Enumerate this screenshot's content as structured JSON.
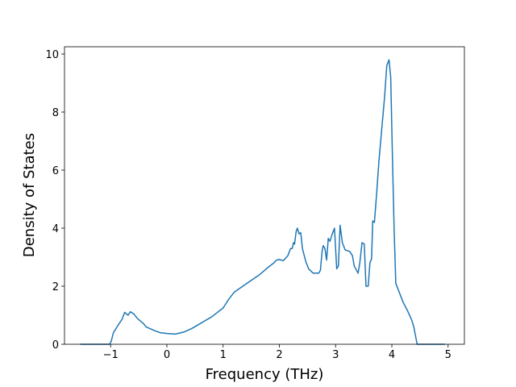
{
  "chart_data": {
    "type": "line",
    "x_label": "Frequency (THz)",
    "y_label": "Density of States",
    "xlim": [
      -1.82,
      5.29
    ],
    "ylim": [
      0,
      10.25
    ],
    "xticks": [
      {
        "value": -1,
        "label": "−1"
      },
      0,
      1,
      2,
      3,
      4,
      5
    ],
    "yticks": [
      0,
      2,
      4,
      6,
      8,
      10
    ],
    "grid": false,
    "series": [
      {
        "color": "#1f77b4",
        "x": [
          -1.54,
          -1.02,
          -0.99,
          -0.95,
          -0.87,
          -0.8,
          -0.75,
          -0.69,
          -0.65,
          -0.59,
          -0.52,
          -0.42,
          -0.37,
          -0.22,
          -0.12,
          0,
          0.15,
          0.3,
          0.45,
          0.6,
          0.8,
          1.0,
          1.05,
          1.1,
          1.2,
          1.35,
          1.5,
          1.65,
          1.8,
          1.9,
          1.95,
          2.0,
          2.07,
          2.15,
          2.2,
          2.23,
          2.25,
          2.27,
          2.3,
          2.32,
          2.35,
          2.38,
          2.41,
          2.47,
          2.52,
          2.6,
          2.7,
          2.73,
          2.76,
          2.78,
          2.81,
          2.84,
          2.87,
          2.9,
          2.94,
          2.98,
          3.02,
          3.05,
          3.08,
          3.12,
          3.17,
          3.25,
          3.3,
          3.33,
          3.4,
          3.43,
          3.47,
          3.51,
          3.54,
          3.58,
          3.61,
          3.64,
          3.66,
          3.69,
          3.73,
          3.77,
          3.82,
          3.87,
          3.91,
          3.95,
          3.98,
          4.01,
          4.04,
          4.07,
          4.13,
          4.2,
          4.28,
          4.35,
          4.39,
          4.44,
          4.45,
          4.95
        ],
        "values": [
          0,
          0,
          0.1,
          0.4,
          0.65,
          0.85,
          1.1,
          1.0,
          1.12,
          1.05,
          0.88,
          0.72,
          0.6,
          0.47,
          0.4,
          0.37,
          0.35,
          0.42,
          0.55,
          0.72,
          0.95,
          1.25,
          1.4,
          1.55,
          1.8,
          2.0,
          2.2,
          2.4,
          2.65,
          2.8,
          2.9,
          2.92,
          2.88,
          3.05,
          3.3,
          3.3,
          3.5,
          3.45,
          3.9,
          4.0,
          3.8,
          3.85,
          3.3,
          2.85,
          2.6,
          2.45,
          2.45,
          2.55,
          3.2,
          3.4,
          3.3,
          2.9,
          3.65,
          3.55,
          3.8,
          4.0,
          2.6,
          2.7,
          4.1,
          3.5,
          3.25,
          3.2,
          3.05,
          2.7,
          2.45,
          2.8,
          3.5,
          3.45,
          2.0,
          2.0,
          2.8,
          2.95,
          4.25,
          4.2,
          5.2,
          6.3,
          7.4,
          8.5,
          9.6,
          9.8,
          9.2,
          6.5,
          4.0,
          2.1,
          1.8,
          1.45,
          1.15,
          0.85,
          0.6,
          0.1,
          0,
          0
        ]
      }
    ]
  }
}
